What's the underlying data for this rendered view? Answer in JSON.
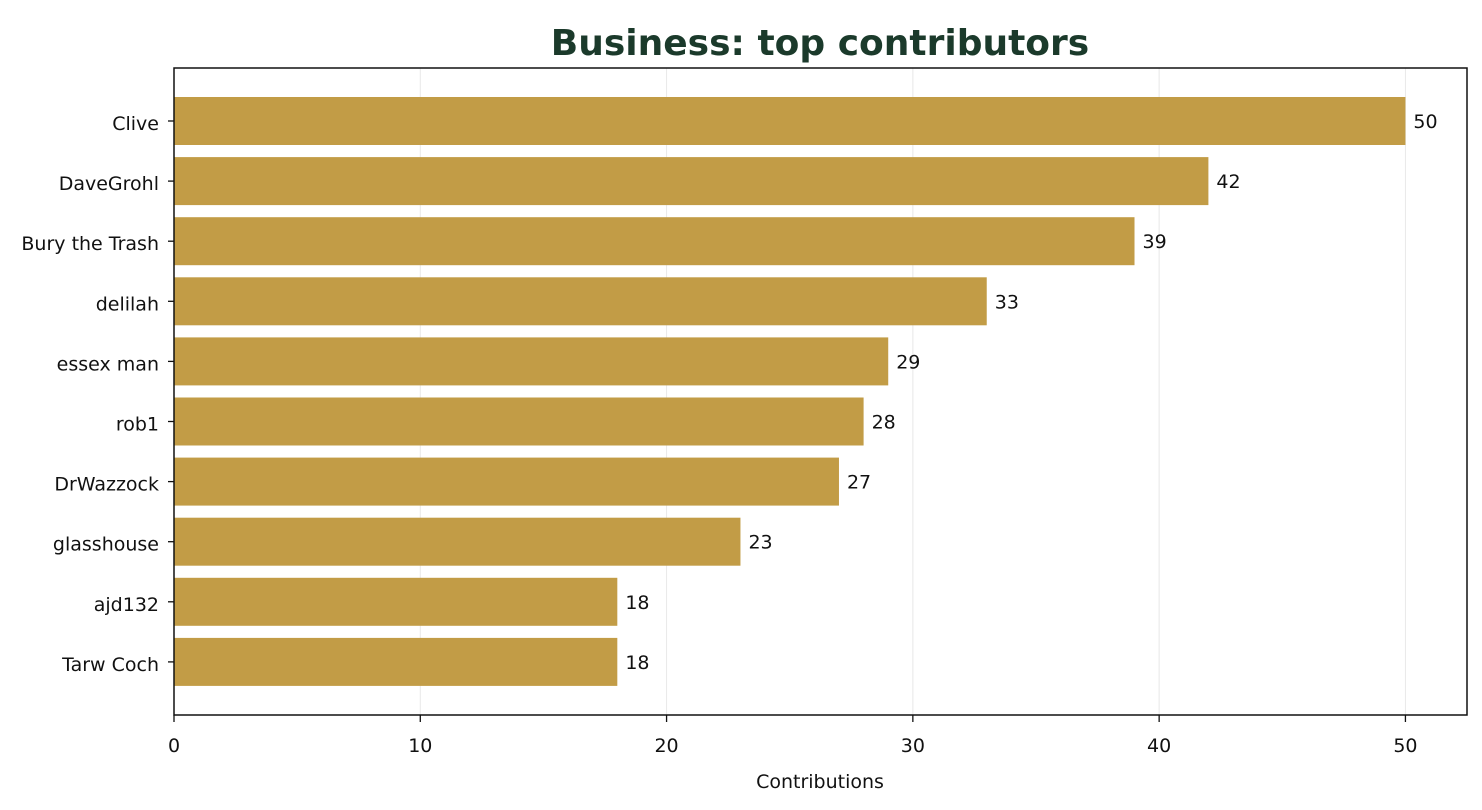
{
  "chart_data": {
    "type": "bar",
    "orientation": "horizontal",
    "title": "Business: top contributors",
    "xlabel": "Contributions",
    "ylabel": "",
    "categories": [
      "Clive",
      "DaveGrohl",
      "Bury the Trash",
      "delilah",
      "essex man",
      "rob1",
      "DrWazzock",
      "glasshouse",
      "ajd132",
      "Tarw Coch"
    ],
    "values": [
      50,
      42,
      39,
      33,
      29,
      28,
      27,
      23,
      18,
      18
    ],
    "xlim": [
      0,
      52.5
    ],
    "xticks": [
      0,
      10,
      20,
      30,
      40,
      50
    ],
    "grid": "vertical",
    "legend": "none",
    "colors": {
      "bar": "#c29c46",
      "title": "#1b3a2b",
      "grid": "#e8e8e8",
      "axis": "#111111"
    }
  }
}
